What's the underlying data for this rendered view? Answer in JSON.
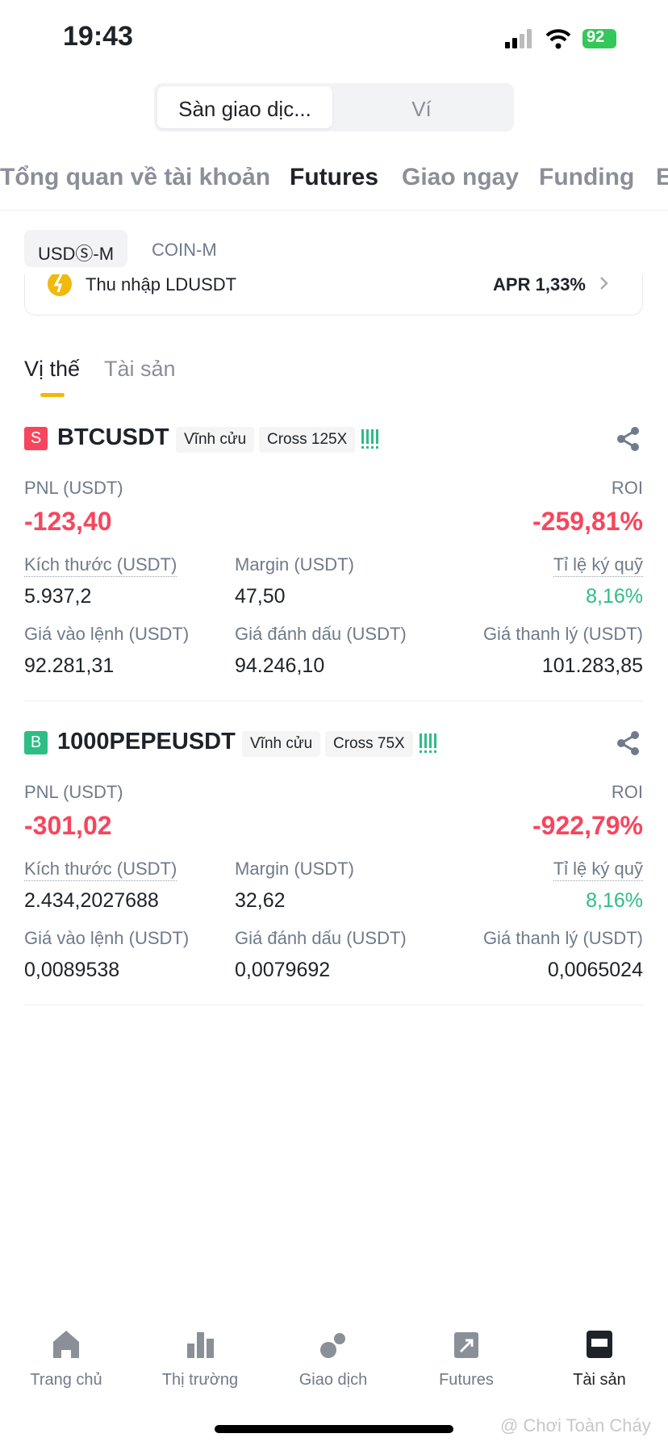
{
  "status": {
    "time": "19:43",
    "battery": "92"
  },
  "segments": [
    "Sàn giao dịc...",
    "Ví"
  ],
  "tabs": [
    "Tổng quan về tài khoản",
    "Futures",
    "Giao ngay",
    "Funding",
    "E"
  ],
  "subtabs": [
    "USDⓈ-M",
    "COIN-M"
  ],
  "banner": {
    "label": "Thu nhập LDUSDT",
    "apr": "APR 1,33%"
  },
  "position_tabs": [
    "Vị thế",
    "Tài sản"
  ],
  "positions": [
    {
      "side": "S",
      "symbol": "BTCUSDT",
      "tags": [
        "Vĩnh cửu",
        "Cross 125X"
      ],
      "pnl_label": "PNL (USDT)",
      "pnl": "-123,40",
      "roi_label": "ROI",
      "roi": "-259,81%",
      "fields": [
        {
          "label": "Kích thước (USDT)",
          "value": "5.937,2"
        },
        {
          "label": "Margin (USDT)",
          "value": "47,50"
        },
        {
          "label": "Tỉ lệ ký quỹ",
          "value": "8,16%"
        },
        {
          "label": "Giá vào lệnh (USDT)",
          "value": "92.281,31"
        },
        {
          "label": "Giá đánh dấu (USDT)",
          "value": "94.246,10"
        },
        {
          "label": "Giá thanh lý (USDT)",
          "value": "101.283,85"
        }
      ]
    },
    {
      "side": "B",
      "symbol": "1000PEPEUSDT",
      "tags": [
        "Vĩnh cửu",
        "Cross 75X"
      ],
      "pnl_label": "PNL (USDT)",
      "pnl": "-301,02",
      "roi_label": "ROI",
      "roi": "-922,79%",
      "fields": [
        {
          "label": "Kích thước (USDT)",
          "value": "2.434,2027688"
        },
        {
          "label": "Margin (USDT)",
          "value": "32,62"
        },
        {
          "label": "Tỉ lệ ký quỹ",
          "value": "8,16%"
        },
        {
          "label": "Giá vào lệnh (USDT)",
          "value": "0,0089538"
        },
        {
          "label": "Giá đánh dấu (USDT)",
          "value": "0,0079692"
        },
        {
          "label": "Giá thanh lý (USDT)",
          "value": "0,0065024"
        }
      ]
    }
  ],
  "nav": [
    "Trang chủ",
    "Thị trường",
    "Giao dịch",
    "Futures",
    "Tài sản"
  ],
  "watermark": "@ Chơi Toàn Cháy"
}
